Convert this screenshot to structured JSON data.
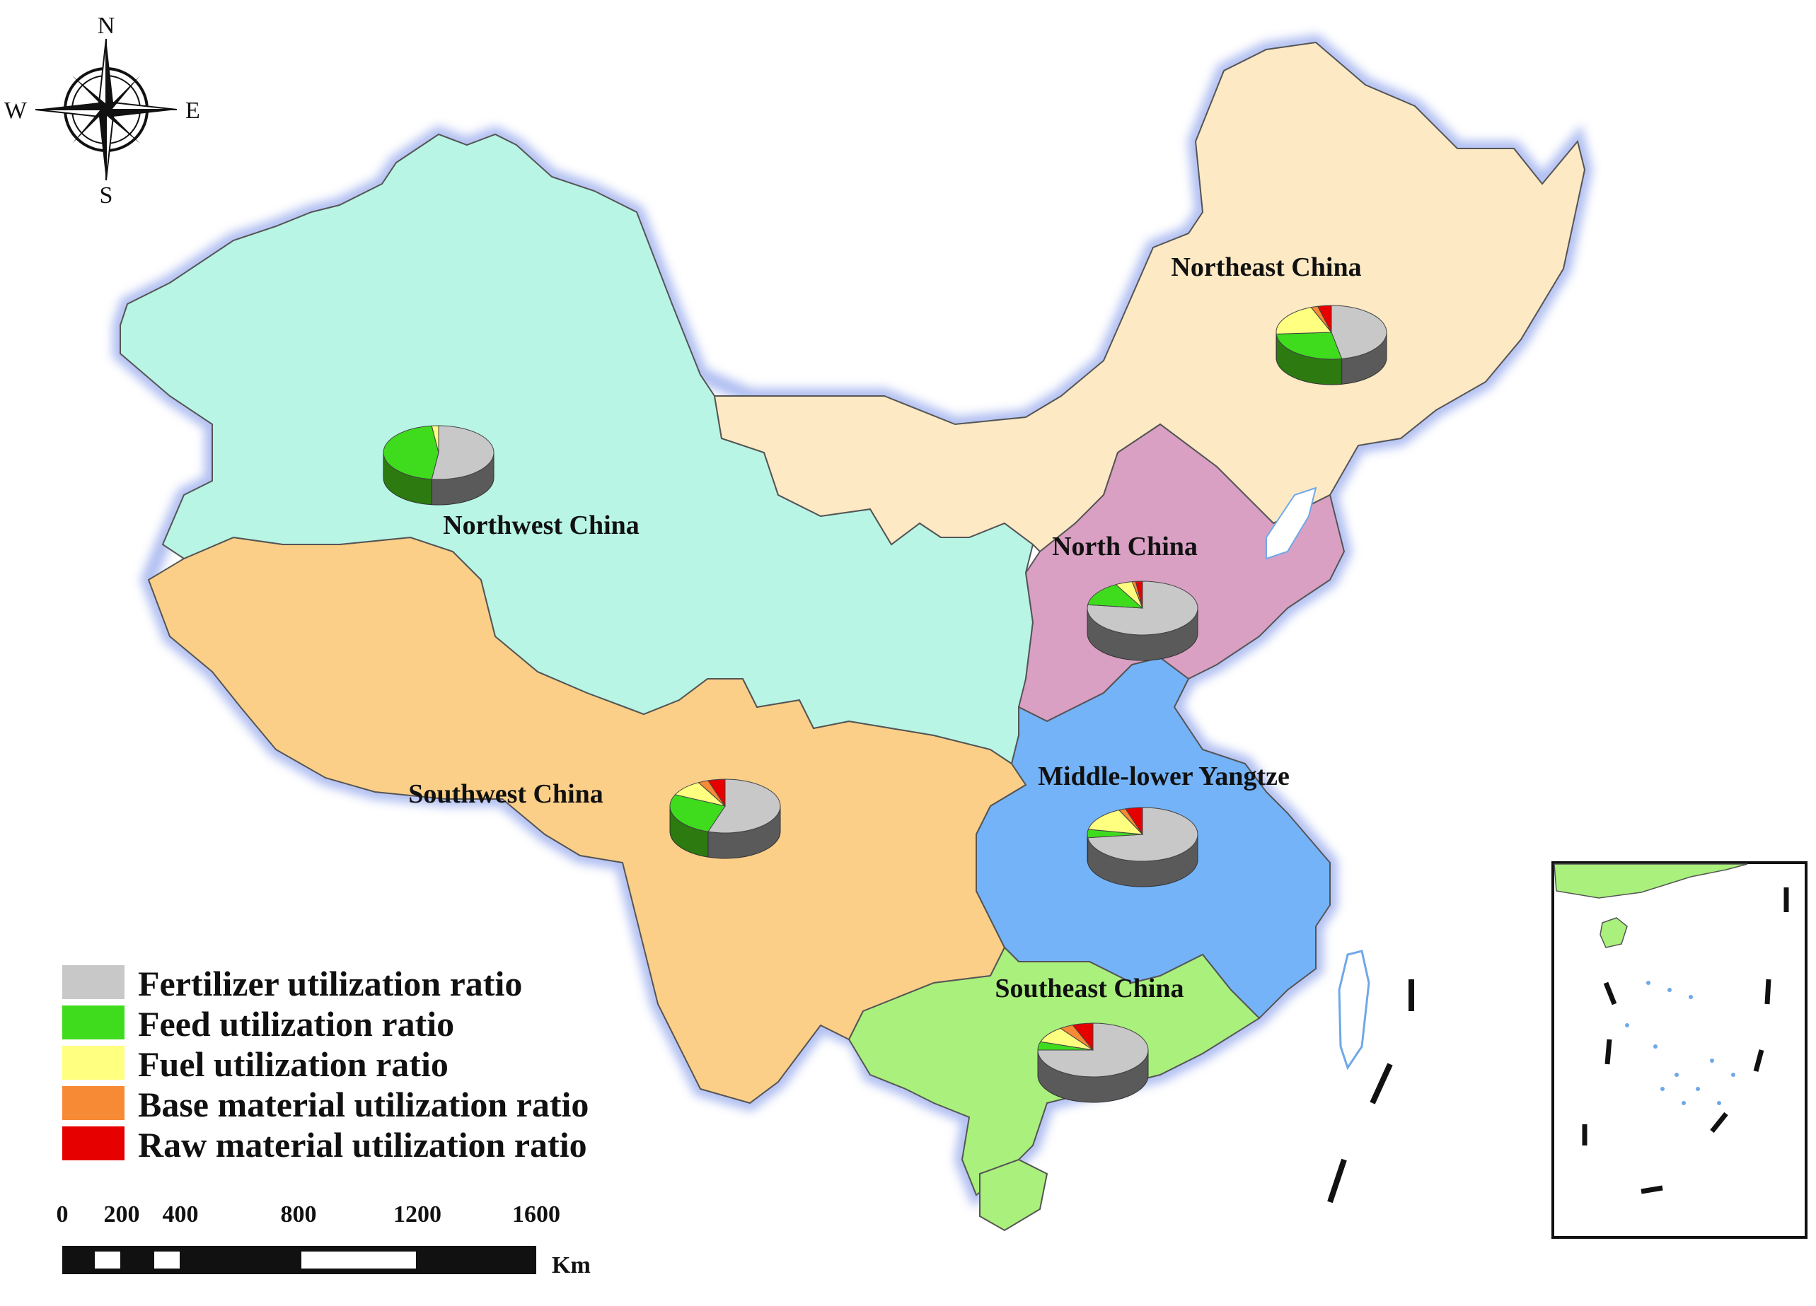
{
  "compass": {
    "north": "N",
    "south": "S",
    "east": "E",
    "west": "W",
    "icon": "compass-rose-icon"
  },
  "regions": [
    {
      "id": "northeast",
      "name": "Northeast China",
      "color": "#fde9c4"
    },
    {
      "id": "northwest",
      "name": "Northwest China",
      "color": "#b8f5e4"
    },
    {
      "id": "north",
      "name": "North China",
      "color": "#d9a0c3"
    },
    {
      "id": "southwest",
      "name": "Southwest China",
      "color": "#fbcf88"
    },
    {
      "id": "middle",
      "name": "Middle-lower Yangtze",
      "color": "#74b3f8"
    },
    {
      "id": "southeast",
      "name": "Southeast China",
      "color": "#a9f07c"
    }
  ],
  "legend": [
    {
      "label": "Fertilizer utilization ratio",
      "color": "#c8c8c8"
    },
    {
      "label": "Feed utilization ratio",
      "color": "#3fdc1e"
    },
    {
      "label": "Fuel utilization ratio",
      "color": "#ffff80"
    },
    {
      "label": "Base material utilization ratio",
      "color": "#f78a35"
    },
    {
      "label": "Raw material utilization ratio",
      "color": "#e60000"
    }
  ],
  "scale_bar": {
    "ticks": [
      "0",
      "200",
      "400",
      "800",
      "1200",
      "1600"
    ],
    "tick_values": [
      0,
      200,
      400,
      800,
      1200,
      1600
    ],
    "unit": "Km"
  },
  "chart_data": {
    "type": "pie",
    "categories": [
      "Fertilizer utilization ratio",
      "Feed utilization ratio",
      "Fuel utilization ratio",
      "Base material utilization ratio",
      "Raw material utilization ratio"
    ],
    "pies": [
      {
        "region": "northeast",
        "values": [
          0.47,
          0.27,
          0.2,
          0.02,
          0.04
        ]
      },
      {
        "region": "northwest",
        "values": [
          0.52,
          0.46,
          0.02,
          0.0,
          0.0
        ]
      },
      {
        "region": "north",
        "values": [
          0.77,
          0.15,
          0.05,
          0.01,
          0.02
        ]
      },
      {
        "region": "southwest",
        "values": [
          0.55,
          0.27,
          0.1,
          0.03,
          0.05
        ]
      },
      {
        "region": "middle",
        "values": [
          0.73,
          0.05,
          0.15,
          0.02,
          0.05
        ]
      },
      {
        "region": "southeast",
        "values": [
          0.75,
          0.05,
          0.1,
          0.04,
          0.06
        ]
      }
    ]
  }
}
